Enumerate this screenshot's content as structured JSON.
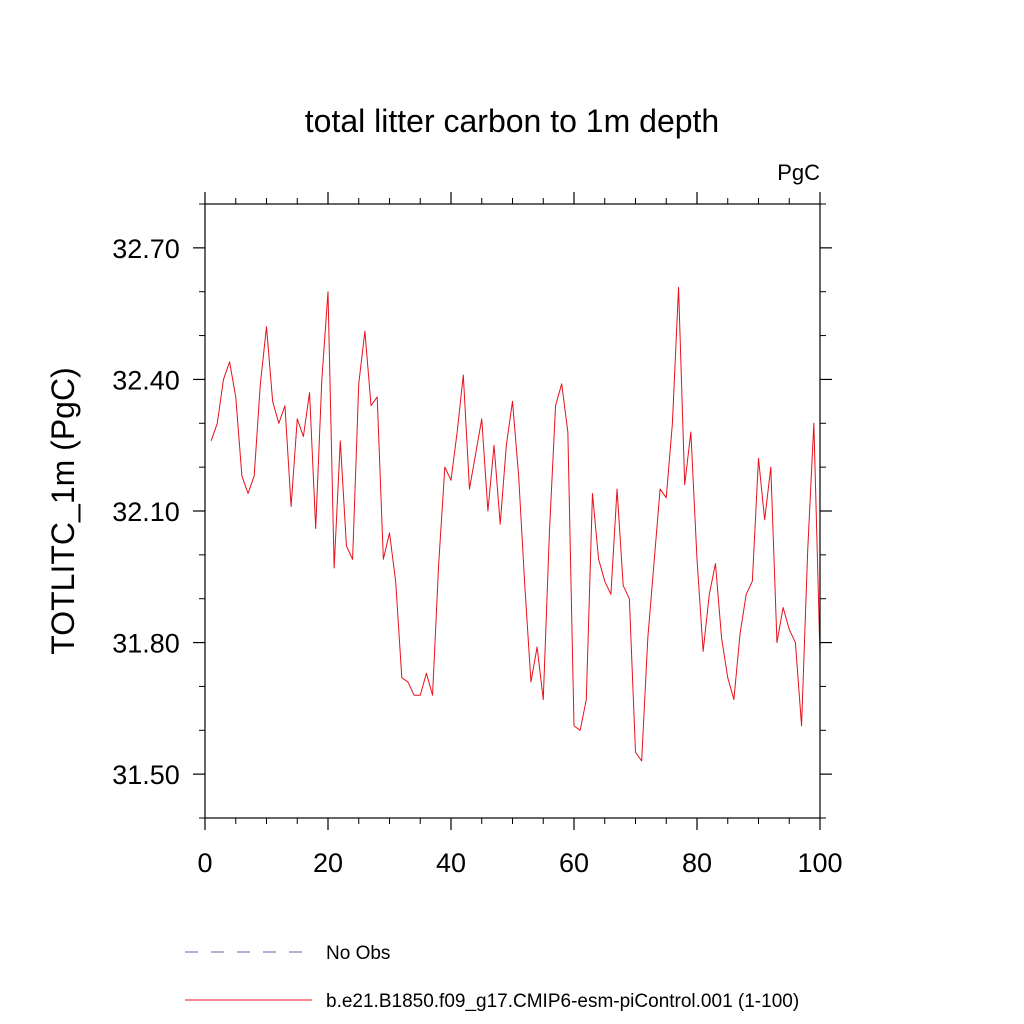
{
  "chart_data": {
    "type": "line",
    "title": "total litter carbon to 1m depth",
    "units_label": "PgC",
    "xlabel": "",
    "ylabel": "TOTLITC_1m  (PgC)",
    "xlim": [
      0,
      100
    ],
    "ylim": [
      31.4,
      32.8
    ],
    "x_ticks": [
      0,
      20,
      40,
      60,
      80,
      100
    ],
    "x_tick_labels": [
      "0",
      "20",
      "40",
      "60",
      "80",
      "100"
    ],
    "y_ticks": [
      31.5,
      31.8,
      32.1,
      32.4,
      32.7
    ],
    "y_tick_labels": [
      "31.50",
      "31.80",
      "32.10",
      "32.40",
      "32.70"
    ],
    "grid": false,
    "legend_placement": "bottom",
    "series": [
      {
        "name": "No Obs",
        "color": "#6b5fb0",
        "dash": "dashed",
        "x": [],
        "values": []
      },
      {
        "name": "b.e21.B1850.f09_g17.CMIP6-esm-piControl.001 (1-100)",
        "color": "#e8101a",
        "dash": "solid",
        "x": [
          1,
          2,
          3,
          4,
          5,
          6,
          7,
          8,
          9,
          10,
          11,
          12,
          13,
          14,
          15,
          16,
          17,
          18,
          19,
          20,
          21,
          22,
          23,
          24,
          25,
          26,
          27,
          28,
          29,
          30,
          31,
          32,
          33,
          34,
          35,
          36,
          37,
          38,
          39,
          40,
          41,
          42,
          43,
          44,
          45,
          46,
          47,
          48,
          49,
          50,
          51,
          52,
          53,
          54,
          55,
          56,
          57,
          58,
          59,
          60,
          61,
          62,
          63,
          64,
          65,
          66,
          67,
          68,
          69,
          70,
          71,
          72,
          73,
          74,
          75,
          76,
          77,
          78,
          79,
          80,
          81,
          82,
          83,
          84,
          85,
          86,
          87,
          88,
          89,
          90,
          91,
          92,
          93,
          94,
          95,
          96,
          97,
          98,
          99,
          100
        ],
        "values": [
          32.26,
          32.3,
          32.4,
          32.44,
          32.36,
          32.18,
          32.14,
          32.18,
          32.39,
          32.52,
          32.35,
          32.3,
          32.34,
          32.11,
          32.31,
          32.27,
          32.37,
          32.06,
          32.4,
          32.6,
          31.97,
          32.26,
          32.02,
          31.99,
          32.39,
          32.51,
          32.34,
          32.36,
          31.99,
          32.05,
          31.94,
          31.72,
          31.71,
          31.68,
          31.68,
          31.73,
          31.68,
          31.98,
          32.2,
          32.17,
          32.28,
          32.41,
          32.15,
          32.23,
          32.31,
          32.1,
          32.25,
          32.07,
          32.25,
          32.35,
          32.18,
          31.93,
          31.71,
          31.79,
          31.67,
          32.05,
          32.34,
          32.39,
          32.28,
          31.61,
          31.6,
          31.67,
          32.14,
          31.99,
          31.94,
          31.91,
          32.15,
          31.93,
          31.9,
          31.55,
          31.53,
          31.81,
          31.98,
          32.15,
          32.13,
          32.3,
          32.61,
          32.16,
          32.28,
          31.99,
          31.78,
          31.91,
          31.98,
          31.81,
          31.72,
          31.67,
          31.82,
          31.91,
          31.94,
          32.22,
          32.08,
          32.2,
          31.8,
          31.88,
          31.83,
          31.8,
          31.61,
          32.01,
          32.3,
          31.77
        ]
      }
    ]
  }
}
